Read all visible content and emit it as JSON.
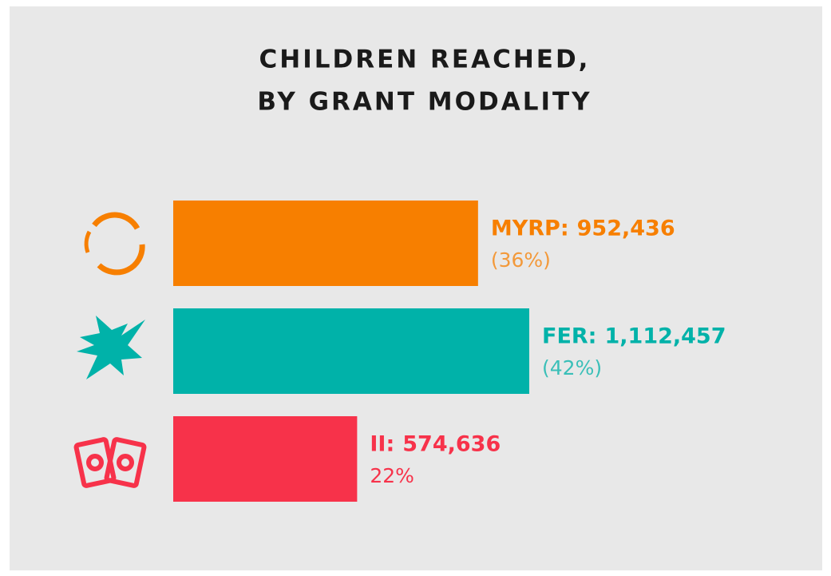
{
  "chart_data": {
    "type": "bar",
    "orientation": "horizontal",
    "title": [
      "CHILDREN REACHED,",
      "BY GRANT MODALITY"
    ],
    "categories": [
      "MYRP:",
      "FER:",
      "II:"
    ],
    "values": [
      952436,
      1112457,
      574636
    ],
    "value_labels": [
      "952,436",
      "1,112,457",
      "574,636"
    ],
    "share_labels": [
      "(36%)",
      "(42%)",
      "22%"
    ],
    "colors": [
      "#f77f00",
      "#00b2a9",
      "#f7324a"
    ]
  }
}
